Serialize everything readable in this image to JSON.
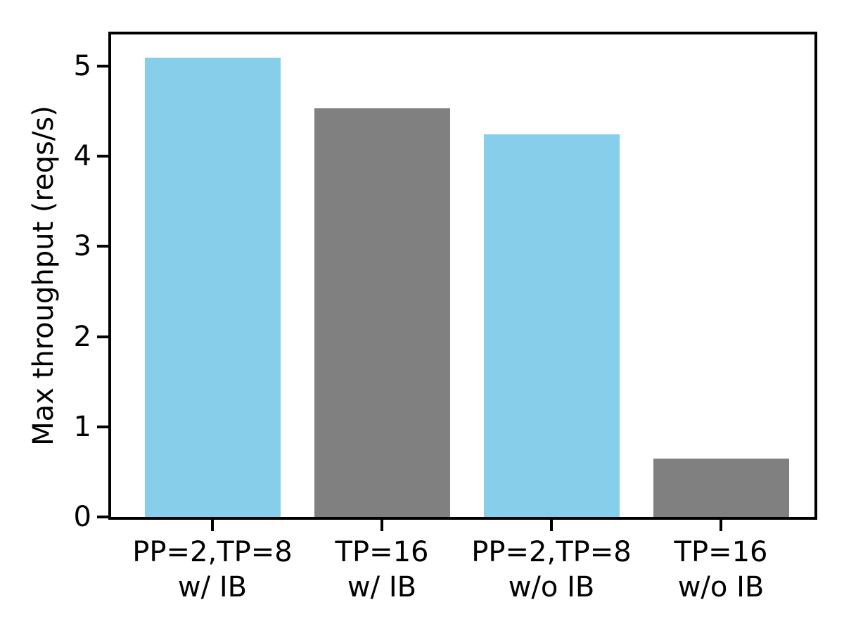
{
  "figure": {
    "background": "#ffffff",
    "axis_color": "#000000"
  },
  "chart_data": {
    "type": "bar",
    "title": "",
    "xlabel": "",
    "ylabel": "Max throughput (reqs/s)",
    "categories": [
      "PP=2,TP=8\nw/ IB",
      "TP=16\nw/ IB",
      "PP=2,TP=8\nw/o IB",
      "TP=16\nw/o IB"
    ],
    "values": [
      5.09,
      4.53,
      4.24,
      0.65
    ],
    "bar_colors": [
      "#87CEEB",
      "#808080",
      "#87CEEB",
      "#808080"
    ],
    "ylim": [
      0,
      5.35
    ],
    "yticks": [
      0,
      1,
      2,
      3,
      4,
      5
    ],
    "grid": false,
    "legend_position": "none"
  }
}
